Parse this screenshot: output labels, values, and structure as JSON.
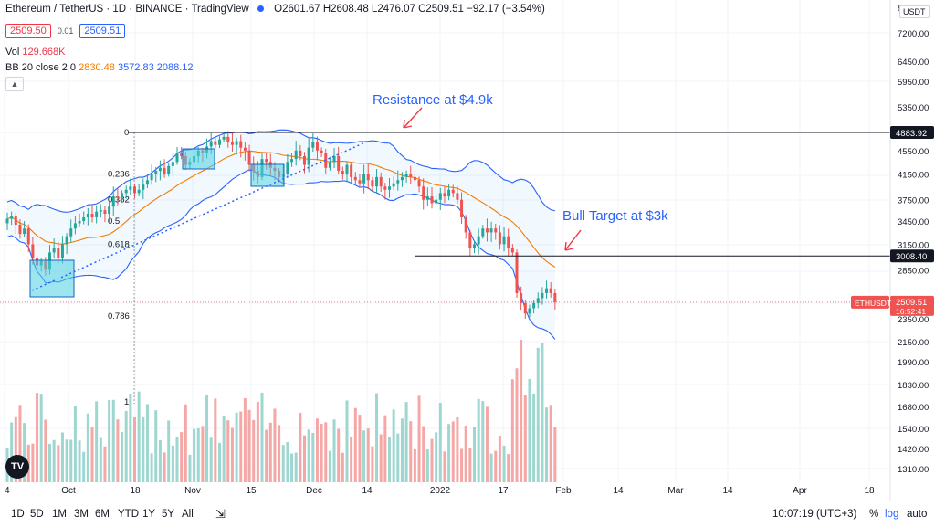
{
  "header": {
    "symbol": "Ethereum / TetherUS · 1D · BINANCE · TradingView",
    "ohlc": "O2601.67 H2608.48 L2476.07 C2509.51 −92.17 (−3.54%)",
    "sell_price": "2509.50",
    "spread": "0.01",
    "buy_price": "2509.51",
    "vol_label": "Vol",
    "vol_value": "129.668K",
    "bb_label": "BB 20 close 2 0",
    "bb_basis": "2830.48",
    "bb_upper": "3572.83",
    "bb_lower": "2088.12",
    "collapse_icon": "chevron-up-icon"
  },
  "currency_label": "USDT",
  "toolbar": {
    "timeframes": [
      "1D",
      "5D",
      "1M",
      "3M",
      "6M",
      "YTD",
      "1Y",
      "5Y",
      "All"
    ],
    "clock": "10:07:19 (UTC+3)",
    "percent": "%",
    "log": "log",
    "auto": "auto",
    "calendar_icon": "calendar-range-icon"
  },
  "logo": "TV",
  "colors": {
    "up": "#26a69a",
    "down": "#ef5350",
    "bb_band": "#2962ff",
    "bb_basis": "#f57c00",
    "annotation": "#2962ff",
    "arrow": "#f23645",
    "fib_box": "#4dd0e1"
  },
  "chart_data": {
    "type": "candlestick",
    "symbol": "ETHUSDT",
    "timeframe": "1D",
    "y_axis_ticks": [
      8000,
      7200,
      6450,
      5950,
      5350,
      4883.92,
      4550,
      4150,
      3750,
      3450,
      3150,
      3008.4,
      2850,
      2509.51,
      2350,
      2150,
      1990,
      1830,
      1680,
      1540,
      1420,
      1310
    ],
    "y_axis_labels": [
      "8000.00",
      "7200.00",
      "6450.00",
      "5950.00",
      "5350.00",
      "4883.92",
      "4550.00",
      "4150.00",
      "3750.00",
      "3450.00",
      "3150.00",
      "3008.40",
      "2850.00",
      "2509.51",
      "2350.00",
      "2150.00",
      "1990.00",
      "1830.00",
      "1680.00",
      "1540.00",
      "1420.00",
      "1310.00"
    ],
    "y_scale": "log",
    "x_axis_labels": [
      "4",
      "Oct",
      "18",
      "Nov",
      "15",
      "Dec",
      "14",
      "2022",
      "17",
      "Feb",
      "14",
      "Mar",
      "14",
      "Apr",
      "18"
    ],
    "last_price": "2509.51",
    "last_price_label": "ETHUSDT",
    "countdown": "16:52:41",
    "resistance_label_value": "4883.92",
    "support_label_value": "3008.40",
    "fib_levels": [
      {
        "label": "0",
        "value": 4883.92
      },
      {
        "label": "0.236",
        "value": 4150
      },
      {
        "label": "0.382",
        "value": 3750
      },
      {
        "label": "0.5",
        "value": 3450
      },
      {
        "label": "0.618",
        "value": 3150
      },
      {
        "label": "0.786",
        "value": 2750
      },
      {
        "label": "1",
        "value": 2050
      }
    ],
    "annotations": [
      {
        "text": "Resistance at $4.9k"
      },
      {
        "text": "Bull Target at $3k"
      }
    ],
    "closes": [
      3480,
      3520,
      3400,
      3280,
      3350,
      3150,
      2980,
      2900,
      2950,
      2850,
      3050,
      3100,
      2980,
      3150,
      3250,
      3350,
      3420,
      3450,
      3500,
      3550,
      3500,
      3580,
      3600,
      3550,
      3650,
      3800,
      3780,
      3850,
      3900,
      3950,
      3850,
      3900,
      3980,
      4050,
      4150,
      4200,
      4250,
      4150,
      4280,
      4350,
      4500,
      4450,
      4300,
      4350,
      4450,
      4550,
      4500,
      4620,
      4720,
      4650,
      4750,
      4800,
      4700,
      4650,
      4720,
      4600,
      4550,
      4300,
      4200,
      4100,
      4400,
      4350,
      4250,
      4200,
      4100,
      4150,
      4350,
      4400,
      4550,
      4450,
      4300,
      4600,
      4700,
      4550,
      4500,
      4250,
      4350,
      4450,
      4200,
      4150,
      4300,
      4100,
      4050,
      4000,
      4150,
      4050,
      3950,
      4100,
      3950,
      3900,
      3950,
      4000,
      4050,
      4100,
      4150,
      4100,
      4050,
      3950,
      3750,
      3800,
      3700,
      3750,
      3850,
      3800,
      3900,
      3850,
      3750,
      3500,
      3300,
      3100,
      3150,
      3250,
      3350,
      3300,
      3350,
      3300,
      3150,
      3250,
      3100,
      3050,
      2600,
      2500,
      2400,
      2450,
      2500,
      2550,
      2600,
      2650,
      2600,
      2509.51
    ],
    "volume_note": "volume histogram per candle, colored by direction"
  }
}
